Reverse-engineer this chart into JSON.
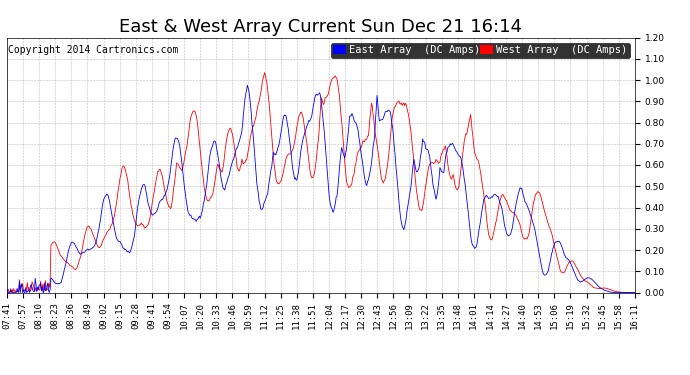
{
  "title": "East & West Array Current Sun Dec 21 16:14",
  "copyright": "Copyright 2014 Cartronics.com",
  "east_label": "East Array  (DC Amps)",
  "west_label": "West Array  (DC Amps)",
  "east_color": "#0000ff",
  "west_color": "#ff0000",
  "background_color": "#ffffff",
  "grid_color": "#aaaaaa",
  "ylim": [
    0.0,
    1.2
  ],
  "yticks": [
    0.0,
    0.1,
    0.2,
    0.3,
    0.4,
    0.5,
    0.6,
    0.7,
    0.8,
    0.9,
    1.0,
    1.1,
    1.2
  ],
  "xtick_labels": [
    "07:41",
    "07:57",
    "08:10",
    "08:23",
    "08:36",
    "08:49",
    "09:02",
    "09:15",
    "09:28",
    "09:41",
    "09:54",
    "10:07",
    "10:20",
    "10:33",
    "10:46",
    "10:59",
    "11:12",
    "11:25",
    "11:38",
    "11:51",
    "12:04",
    "12:17",
    "12:30",
    "12:43",
    "12:56",
    "13:09",
    "13:22",
    "13:35",
    "13:48",
    "14:01",
    "14:14",
    "14:27",
    "14:40",
    "14:53",
    "15:06",
    "15:19",
    "15:32",
    "15:45",
    "15:58",
    "16:11"
  ],
  "title_fontsize": 13,
  "tick_fontsize": 6.5,
  "legend_fontsize": 7.5,
  "copyright_fontsize": 7
}
